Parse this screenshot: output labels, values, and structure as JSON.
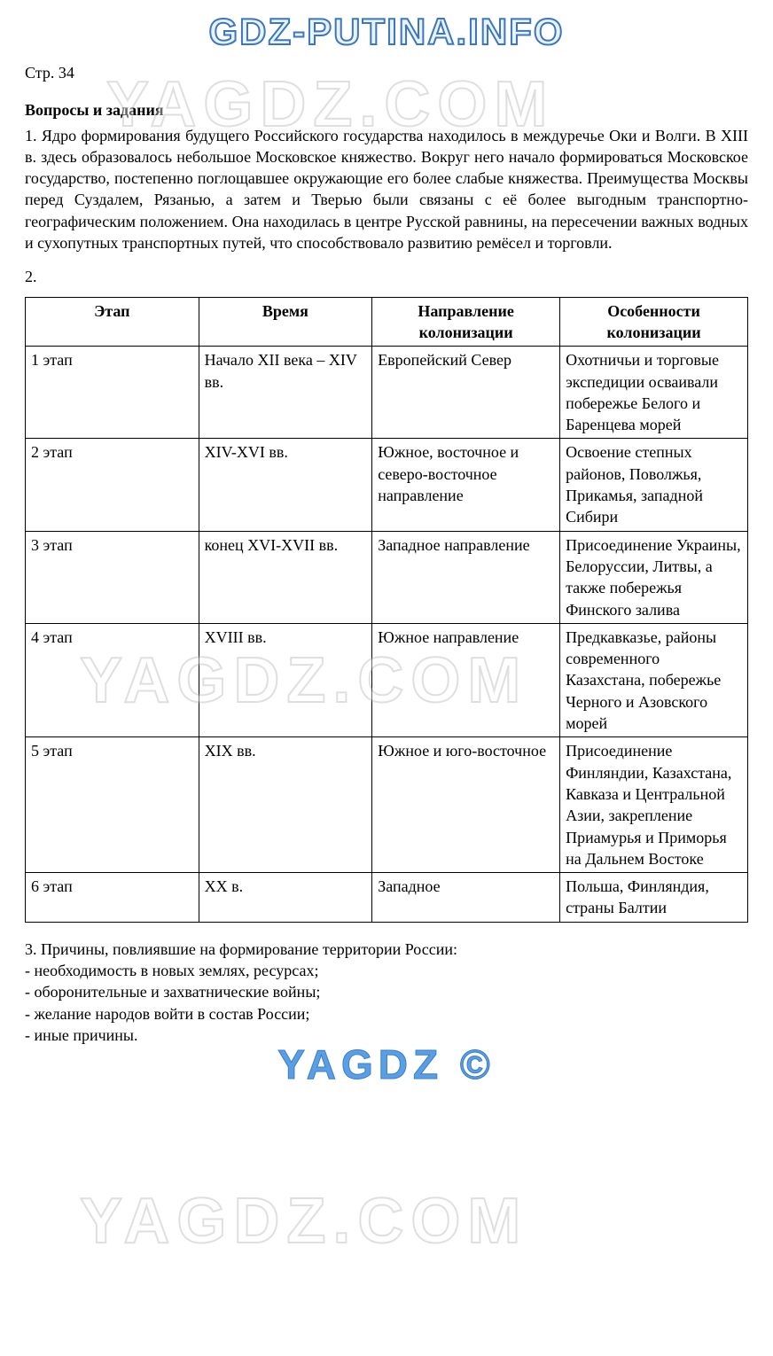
{
  "watermarks": {
    "top_logo": "GDZ-PUTINA.INFO",
    "yagdz": "YAGDZ.COM",
    "bottom_logo": "YAGDZ ©"
  },
  "page_ref": "Стр. 34",
  "section_head": "Вопросы и задания",
  "q1": "1. Ядро формирования будущего Российского государства находилось в междуречье Оки и Волги. В XIII в. здесь образовалось небольшое Московское княжество. Вокруг него начало формироваться Московское государство, постепенно поглощавшее окружающие его более слабые княжества. Преимущества Москвы перед Суздалем, Рязанью, а затем и Тверью были связаны с её более выгодным транспортно-географическим положением. Она находилась в центре Русской равнины, на пересечении важных водных и сухопутных транспортных путей, что способствовало развитию ремёсел и торговли.",
  "q2_label": "2.",
  "table": {
    "headers": [
      "Этап",
      "Время",
      "Направление колонизации",
      "Особенности колонизации"
    ],
    "col_widths": [
      "24%",
      "24%",
      "26%",
      "26%"
    ],
    "rows": [
      [
        "1 этап",
        "Начало XII века – XIV вв.",
        "Европейский Север",
        "Охотничьи и торговые экспедиции осваивали побережье Белого и Баренцева морей"
      ],
      [
        "2 этап",
        "XIV-XVI вв.",
        "Южное, восточное и северо-восточное направление",
        "Освоение степных районов, Поволжья, Прикамья, западной Сибири"
      ],
      [
        "3 этап",
        "конец XVI-XVII вв.",
        "Западное направление",
        "Присоединение Украины, Белоруссии, Литвы, а также побережья Финского залива"
      ],
      [
        "4 этап",
        "XVIII вв.",
        "Южное направление",
        "Предкавказье, районы современного Казахстана, побережье Черного и Азовского морей"
      ],
      [
        "5 этап",
        "XIX вв.",
        "Южное и юго-восточное",
        "Присоединение Финляндии, Казахстана, Кавказа и Центральной Азии, закрепление Приамурья и Приморья на Дальнем Востоке"
      ],
      [
        "6 этап",
        "XX в.",
        "Западное",
        "Польша, Финляндия, страны Балтии"
      ]
    ]
  },
  "q3_intro": "3. Причины, повлиявшие на формирование территории России:",
  "q3_items": [
    "- необходимость в новых землях, ресурсах;",
    "- оборонительные и захватнические войны;",
    "- желание народов войти в состав России;",
    "- иные причины."
  ]
}
